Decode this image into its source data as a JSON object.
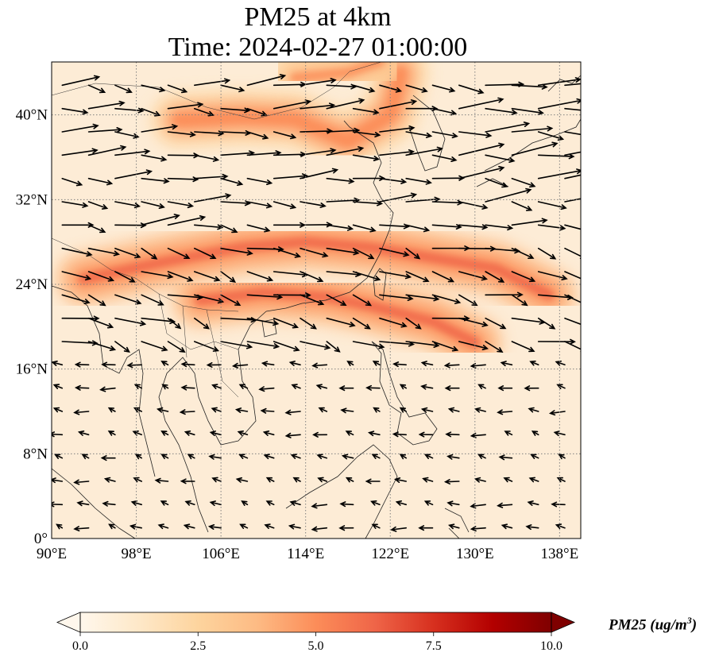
{
  "title": {
    "line1": "PM25 at 4km",
    "line2": "Time: 2024-02-27 01:00:00"
  },
  "map": {
    "projection": "PlateCarree",
    "lon_range": [
      90,
      140
    ],
    "lat_range": [
      0,
      45
    ],
    "gridlines": "dotted gray",
    "coastlines": true,
    "borders": true,
    "x_ticks": [
      "90°E",
      "98°E",
      "106°E",
      "114°E",
      "122°E",
      "130°E",
      "138°E"
    ],
    "y_ticks": [
      "0°",
      "8°N",
      "16°N",
      "24°N",
      "32°N",
      "40°N"
    ],
    "x_tick_values": [
      90,
      98,
      106,
      114,
      122,
      130,
      138
    ],
    "y_tick_values": [
      0,
      8,
      16,
      24,
      32,
      40
    ]
  },
  "field": {
    "variable": "PM25",
    "level": "4km",
    "high_bands": [
      {
        "name": "east-china-sea-band",
        "path": [
          [
            93,
            24.5
          ],
          [
            100,
            26
          ],
          [
            108,
            27.5
          ],
          [
            114,
            28
          ],
          [
            120,
            27.5
          ],
          [
            126,
            26.5
          ],
          [
            132,
            25.5
          ],
          [
            137,
            23
          ]
        ],
        "value": 6.2
      },
      {
        "name": "south-china-coast-band",
        "path": [
          [
            104,
            22.5
          ],
          [
            110,
            23.2
          ],
          [
            116,
            22.8
          ],
          [
            120,
            22
          ],
          [
            126,
            20.5
          ],
          [
            130,
            18.5
          ]
        ],
        "value": 6.8
      },
      {
        "name": "north-china-band",
        "path": [
          [
            102,
            39.5
          ],
          [
            108,
            39.8
          ],
          [
            113,
            39.6
          ],
          [
            118,
            37.5
          ],
          [
            122,
            40
          ],
          [
            123,
            44
          ]
        ],
        "value": 5.6
      },
      {
        "name": "upper-band",
        "path": [
          [
            113,
            43.5
          ],
          [
            118,
            44
          ],
          [
            121,
            45
          ]
        ],
        "value": 5.0
      }
    ],
    "background_value": 1.5,
    "colormap": "OrRd",
    "colormap_stops": [
      "#fff7ec",
      "#fee8c8",
      "#fdd49e",
      "#fdbb84",
      "#fc8d59",
      "#ef6548",
      "#d7301f",
      "#b30000",
      "#7f0000"
    ]
  },
  "winds": {
    "description": "wind vectors",
    "grid_lon_step": 2.5,
    "grid_lat_step": 2.2,
    "regimes": [
      {
        "lat_min": 28,
        "lat_max": 45,
        "u": 1.0,
        "v": -0.08,
        "speed": 1.6
      },
      {
        "lat_min": 18,
        "lat_max": 28,
        "u": 1.0,
        "v": -0.35,
        "speed": 1.5
      },
      {
        "lat_min": 0,
        "lat_max": 18,
        "u": -0.9,
        "v": 0.2,
        "speed": 0.6
      }
    ]
  },
  "colorbar": {
    "min": 0.0,
    "max": 10.0,
    "extend": "both",
    "ticks": [
      "0.0",
      "2.5",
      "5.0",
      "7.5",
      "10.0"
    ],
    "tick_values": [
      0.0,
      2.5,
      5.0,
      7.5,
      10.0
    ],
    "label_text": "PM25 (ug/m",
    "label_sup": "3",
    "label_close": ")"
  }
}
